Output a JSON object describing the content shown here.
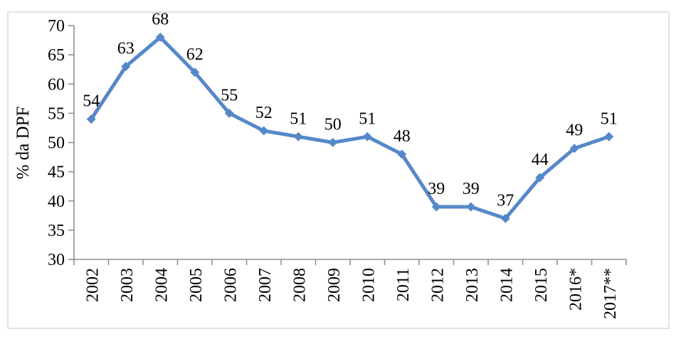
{
  "chart_data": {
    "type": "line",
    "categories": [
      "2002",
      "2003",
      "2004",
      "2005",
      "2006",
      "2007",
      "2008",
      "2009",
      "2010",
      "2011",
      "2012",
      "2013",
      "2014",
      "2015",
      "2016*",
      "2017**"
    ],
    "values": [
      54,
      63,
      68,
      62,
      55,
      52,
      51,
      50,
      51,
      48,
      39,
      39,
      37,
      44,
      49,
      51
    ],
    "data_labels": [
      "54",
      "63",
      "68",
      "62",
      "55",
      "52",
      "51",
      "50",
      "51",
      "48",
      "39",
      "39",
      "37",
      "44",
      "49",
      "51"
    ],
    "title": "",
    "xlabel": "",
    "ylabel": "% da DPF",
    "ylim": [
      30,
      70
    ],
    "ytick_step": 5,
    "ytick_labels": [
      "30",
      "35",
      "40",
      "45",
      "50",
      "55",
      "60",
      "65",
      "70"
    ],
    "grid": false,
    "legend": "none",
    "marker": "diamond",
    "colors": {
      "line": "#5588C8",
      "marker": "#5588C8",
      "axis": "#909090",
      "text": "#000000",
      "frame_border": "#D9D9D9",
      "background": "#FFFFFF"
    }
  }
}
